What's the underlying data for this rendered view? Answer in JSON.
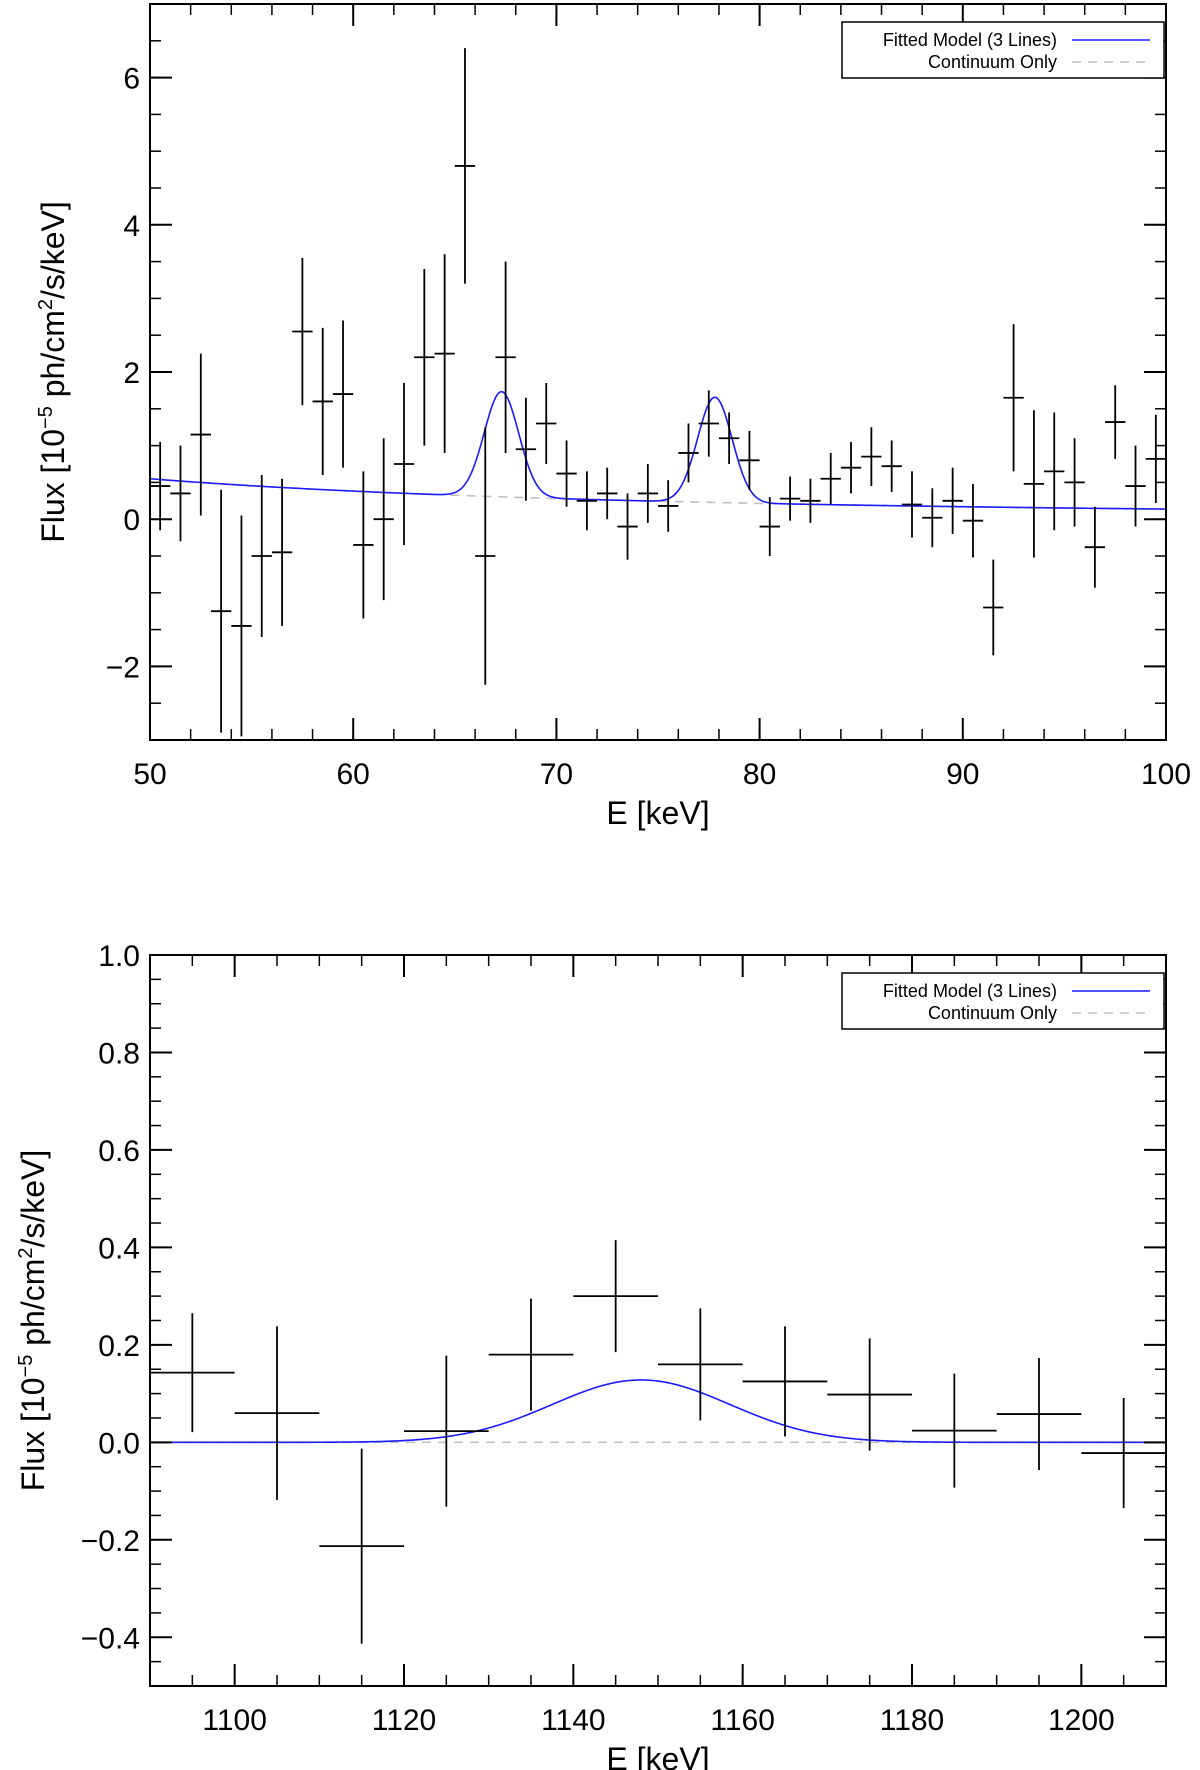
{
  "chart_data": [
    {
      "type": "scatter",
      "panel": "top",
      "title": "",
      "xlabel": "E [keV]",
      "ylabel": {
        "prefix": "Flux [10",
        "exp": "−5",
        "mid": " ph/cm",
        "exp2": "2",
        "suffix": "/s/keV]"
      },
      "xlim": [
        50,
        100
      ],
      "ylim": [
        -3,
        7
      ],
      "xticks": [
        50,
        60,
        70,
        80,
        90,
        100
      ],
      "xtick_labels": [
        "50",
        "60",
        "70",
        "80",
        "90",
        "100"
      ],
      "yticks": [
        -2,
        0,
        2,
        4,
        6
      ],
      "ytick_labels": [
        "−2",
        "0",
        "2",
        "4",
        "6"
      ],
      "x_minor_step": 2,
      "y_minor_step": 0.5,
      "legend": [
        {
          "label": "Fitted Model (3 Lines)",
          "color": "#1a1aff",
          "dash": false
        },
        {
          "label": "Continuum Only",
          "color": "#c0c0c0",
          "dash": true
        }
      ],
      "legend_position": "top-right",
      "data_points": [
        {
          "x": 50.5,
          "y": 0.45,
          "xerr": 0.5,
          "yerr": 0.6
        },
        {
          "x": 51.5,
          "y": 0.35,
          "xerr": 0.5,
          "yerr": 0.65
        },
        {
          "x": 52.5,
          "y": 1.15,
          "xerr": 0.5,
          "yerr": 1.1
        },
        {
          "x": 53.5,
          "y": -1.25,
          "xerr": 0.5,
          "yerr": 1.65
        },
        {
          "x": 54.5,
          "y": -1.45,
          "xerr": 0.5,
          "yerr": 1.5
        },
        {
          "x": 55.5,
          "y": -0.5,
          "xerr": 0.5,
          "yerr": 1.1
        },
        {
          "x": 56.5,
          "y": -0.45,
          "xerr": 0.5,
          "yerr": 1.0
        },
        {
          "x": 57.5,
          "y": 2.55,
          "xerr": 0.5,
          "yerr": 1.0
        },
        {
          "x": 58.5,
          "y": 1.6,
          "xerr": 0.5,
          "yerr": 1.0
        },
        {
          "x": 59.5,
          "y": 1.7,
          "xerr": 0.5,
          "yerr": 1.0
        },
        {
          "x": 60.5,
          "y": -0.35,
          "xerr": 0.5,
          "yerr": 1.0
        },
        {
          "x": 61.5,
          "y": 0.0,
          "xerr": 0.5,
          "yerr": 1.1
        },
        {
          "x": 62.5,
          "y": 0.75,
          "xerr": 0.5,
          "yerr": 1.1
        },
        {
          "x": 63.5,
          "y": 2.2,
          "xerr": 0.5,
          "yerr": 1.2
        },
        {
          "x": 64.5,
          "y": 2.25,
          "xerr": 0.5,
          "yerr": 1.35
        },
        {
          "x": 65.5,
          "y": 4.8,
          "xerr": 0.5,
          "yerr": 1.6
        },
        {
          "x": 66.5,
          "y": -0.5,
          "xerr": 0.5,
          "yerr": 1.75
        },
        {
          "x": 67.5,
          "y": 2.2,
          "xerr": 0.5,
          "yerr": 1.3
        },
        {
          "x": 68.5,
          "y": 0.95,
          "xerr": 0.5,
          "yerr": 0.7
        },
        {
          "x": 69.5,
          "y": 1.3,
          "xerr": 0.5,
          "yerr": 0.55
        },
        {
          "x": 70.5,
          "y": 0.62,
          "xerr": 0.5,
          "yerr": 0.45
        },
        {
          "x": 71.5,
          "y": 0.25,
          "xerr": 0.5,
          "yerr": 0.4
        },
        {
          "x": 72.5,
          "y": 0.35,
          "xerr": 0.5,
          "yerr": 0.35
        },
        {
          "x": 73.5,
          "y": -0.1,
          "xerr": 0.5,
          "yerr": 0.45
        },
        {
          "x": 74.5,
          "y": 0.35,
          "xerr": 0.5,
          "yerr": 0.4
        },
        {
          "x": 75.5,
          "y": 0.18,
          "xerr": 0.5,
          "yerr": 0.35
        },
        {
          "x": 76.5,
          "y": 0.9,
          "xerr": 0.5,
          "yerr": 0.4
        },
        {
          "x": 77.5,
          "y": 1.3,
          "xerr": 0.5,
          "yerr": 0.45
        },
        {
          "x": 78.5,
          "y": 1.1,
          "xerr": 0.5,
          "yerr": 0.35
        },
        {
          "x": 79.5,
          "y": 0.8,
          "xerr": 0.5,
          "yerr": 0.4
        },
        {
          "x": 80.5,
          "y": -0.1,
          "xerr": 0.5,
          "yerr": 0.4
        },
        {
          "x": 81.5,
          "y": 0.28,
          "xerr": 0.5,
          "yerr": 0.3
        },
        {
          "x": 82.5,
          "y": 0.25,
          "xerr": 0.5,
          "yerr": 0.3
        },
        {
          "x": 83.5,
          "y": 0.55,
          "xerr": 0.5,
          "yerr": 0.35
        },
        {
          "x": 84.5,
          "y": 0.7,
          "xerr": 0.5,
          "yerr": 0.35
        },
        {
          "x": 85.5,
          "y": 0.85,
          "xerr": 0.5,
          "yerr": 0.4
        },
        {
          "x": 86.5,
          "y": 0.72,
          "xerr": 0.5,
          "yerr": 0.35
        },
        {
          "x": 87.5,
          "y": 0.2,
          "xerr": 0.5,
          "yerr": 0.45
        },
        {
          "x": 88.5,
          "y": 0.02,
          "xerr": 0.5,
          "yerr": 0.4
        },
        {
          "x": 89.5,
          "y": 0.25,
          "xerr": 0.5,
          "yerr": 0.45
        },
        {
          "x": 90.5,
          "y": -0.02,
          "xerr": 0.5,
          "yerr": 0.5
        },
        {
          "x": 91.5,
          "y": -1.2,
          "xerr": 0.5,
          "yerr": 0.65
        },
        {
          "x": 92.5,
          "y": 1.65,
          "xerr": 0.5,
          "yerr": 1.0
        },
        {
          "x": 93.5,
          "y": 0.48,
          "xerr": 0.5,
          "yerr": 1.0
        },
        {
          "x": 94.5,
          "y": 0.65,
          "xerr": 0.5,
          "yerr": 0.8
        },
        {
          "x": 95.5,
          "y": 0.5,
          "xerr": 0.5,
          "yerr": 0.6
        },
        {
          "x": 96.5,
          "y": -0.38,
          "xerr": 0.5,
          "yerr": 0.55
        },
        {
          "x": 97.5,
          "y": 1.32,
          "xerr": 0.5,
          "yerr": 0.5
        },
        {
          "x": 98.5,
          "y": 0.45,
          "xerr": 0.5,
          "yerr": 0.55
        },
        {
          "x": 99.5,
          "y": 0.82,
          "xerr": 0.5,
          "yerr": 0.6
        }
      ],
      "model": {
        "continuum_at_xmin": 0.55,
        "continuum_index": 2.0,
        "lines": [
          {
            "center": 67.3,
            "amplitude": 1.43,
            "sigma": 0.85
          },
          {
            "center": 77.8,
            "amplitude": 1.43,
            "sigma": 0.85
          }
        ],
        "continuum_start": 64.0
      }
    },
    {
      "type": "scatter",
      "panel": "bottom",
      "title": "",
      "xlabel": "E [keV]",
      "ylabel": {
        "prefix": "Flux [10",
        "exp": "−5",
        "mid": " ph/cm",
        "exp2": "2",
        "suffix": "/s/keV]"
      },
      "xlim": [
        1090,
        1210
      ],
      "ylim": [
        -0.5,
        1.0
      ],
      "xticks": [
        1100,
        1120,
        1140,
        1160,
        1180,
        1200
      ],
      "xtick_labels": [
        "1100",
        "1120",
        "1140",
        "1160",
        "1180",
        "1200"
      ],
      "yticks": [
        -0.4,
        -0.2,
        0.0,
        0.2,
        0.4,
        0.6,
        0.8,
        1.0
      ],
      "ytick_labels": [
        "−0.4",
        "−0.2",
        "0.0",
        "0.2",
        "0.4",
        "0.6",
        "0.8",
        "1.0"
      ],
      "x_minor_step": 5,
      "y_minor_step": 0.05,
      "legend": [
        {
          "label": "Fitted Model (3 Lines)",
          "color": "#1a1aff",
          "dash": false
        },
        {
          "label": "Continuum Only",
          "color": "#c0c0c0",
          "dash": true
        }
      ],
      "legend_position": "top-right",
      "data_points": [
        {
          "x": 1095,
          "y": 0.143,
          "xerr": 5,
          "yerr": 0.122
        },
        {
          "x": 1105,
          "y": 0.06,
          "xerr": 5,
          "yerr": 0.178
        },
        {
          "x": 1115,
          "y": -0.213,
          "xerr": 5,
          "yerr": 0.2
        },
        {
          "x": 1125,
          "y": 0.023,
          "xerr": 5,
          "yerr": 0.155
        },
        {
          "x": 1135,
          "y": 0.18,
          "xerr": 5,
          "yerr": 0.115
        },
        {
          "x": 1145,
          "y": 0.3,
          "xerr": 5,
          "yerr": 0.115
        },
        {
          "x": 1155,
          "y": 0.16,
          "xerr": 5,
          "yerr": 0.115
        },
        {
          "x": 1165,
          "y": 0.125,
          "xerr": 5,
          "yerr": 0.113
        },
        {
          "x": 1175,
          "y": 0.098,
          "xerr": 5,
          "yerr": 0.115
        },
        {
          "x": 1185,
          "y": 0.024,
          "xerr": 5,
          "yerr": 0.117
        },
        {
          "x": 1195,
          "y": 0.058,
          "xerr": 5,
          "yerr": 0.115
        },
        {
          "x": 1205,
          "y": -0.022,
          "xerr": 5,
          "yerr": 0.113
        }
      ],
      "model": {
        "continuum": 0.0,
        "lines": [
          {
            "center": 1148.0,
            "amplitude": 0.128,
            "sigma": 10.5
          }
        ]
      }
    }
  ]
}
